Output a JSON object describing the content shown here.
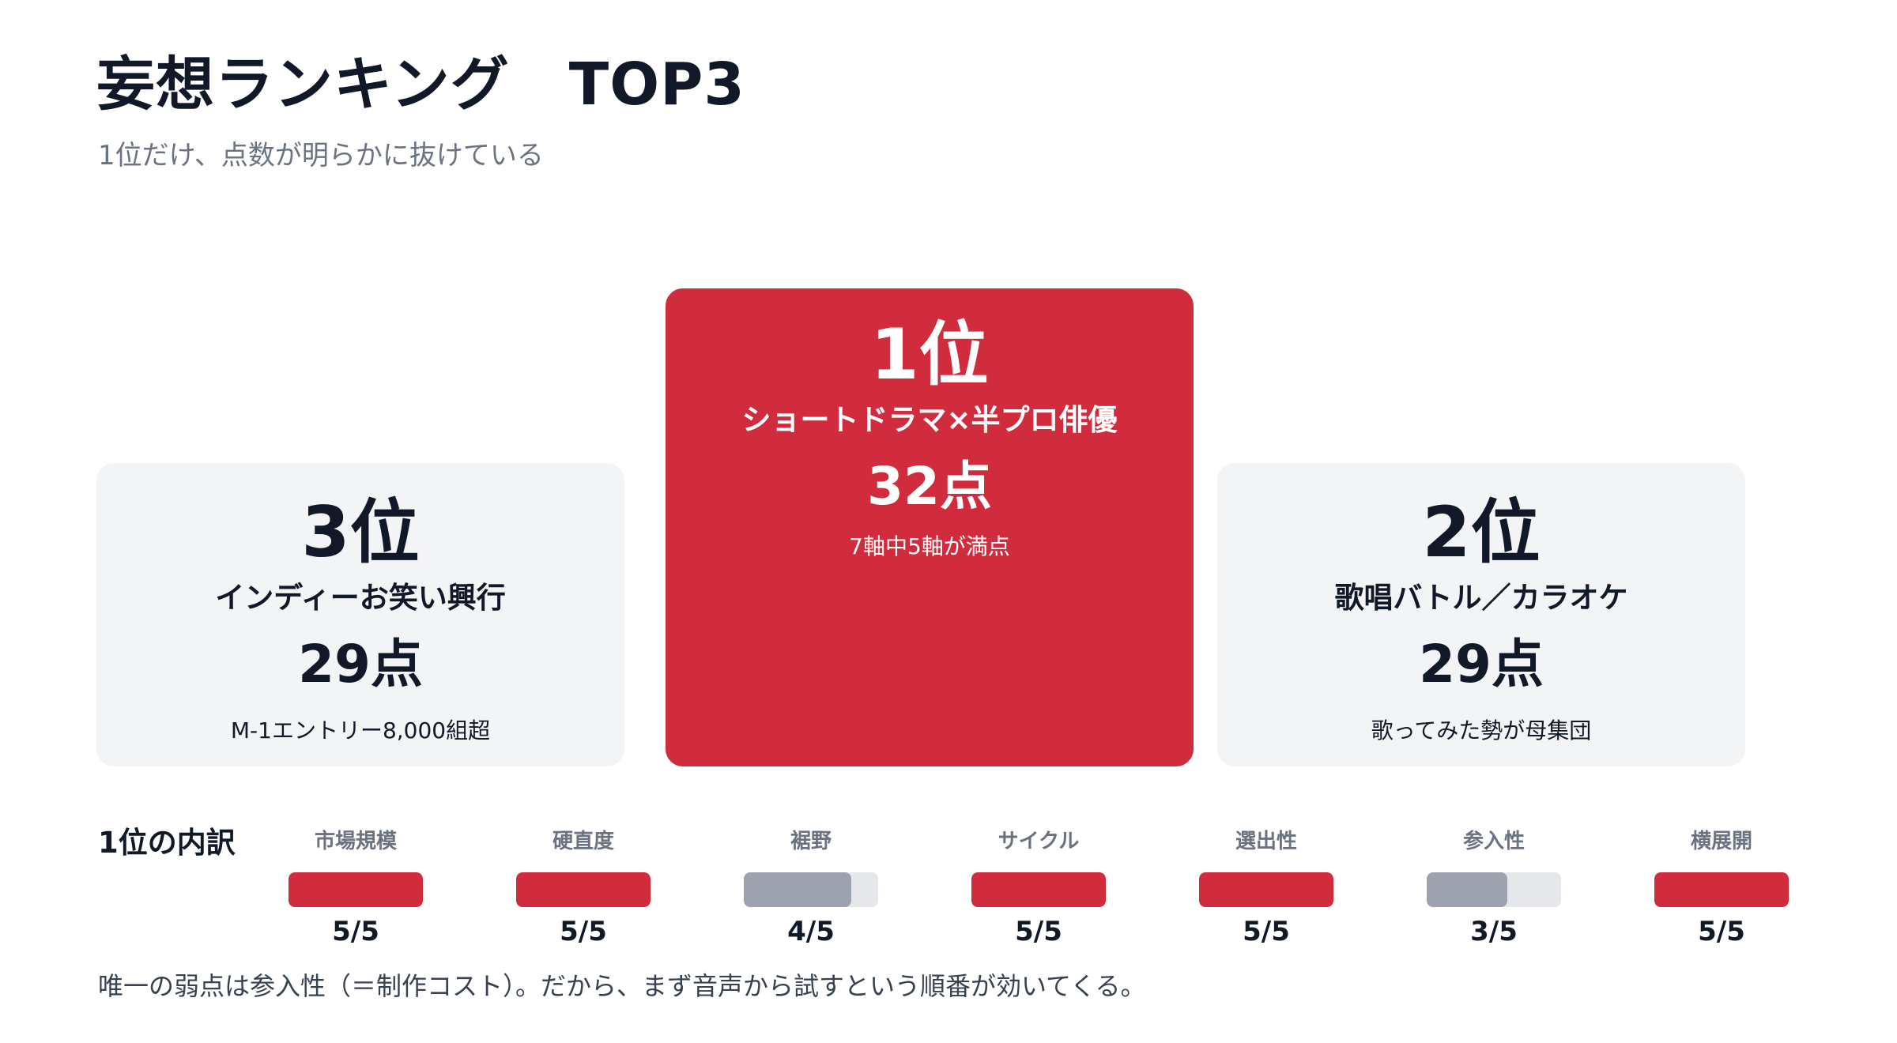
{
  "header": {
    "title": "妄想ランキング　TOP3",
    "subtitle": "1位だけ、点数が明らかに抜けている"
  },
  "ranking": {
    "first": {
      "rank": "1位",
      "name": "ショートドラマ×半プロ俳優",
      "score": "32点",
      "note": "7軸中5軸が満点"
    },
    "second": {
      "rank": "2位",
      "name": "歌唱バトル／カラオケ",
      "score": "29点",
      "note": "歌ってみた勢が母集団"
    },
    "third": {
      "rank": "3位",
      "name": "インディーお笑い興行",
      "score": "29点",
      "note": "M-1エントリー8,000組超"
    }
  },
  "breakdown": {
    "label": "1位の内訳",
    "max": 5,
    "axes": [
      {
        "label": "市場規模",
        "value": 5,
        "display": "5/5",
        "color": "#d12c3e"
      },
      {
        "label": "硬直度",
        "value": 5,
        "display": "5/5",
        "color": "#d12c3e"
      },
      {
        "label": "裾野",
        "value": 4,
        "display": "4/5",
        "color": "#9ca3af"
      },
      {
        "label": "サイクル",
        "value": 5,
        "display": "5/5",
        "color": "#d12c3e"
      },
      {
        "label": "選出性",
        "value": 5,
        "display": "5/5",
        "color": "#d12c3e"
      },
      {
        "label": "参入性",
        "value": 3,
        "display": "3/5",
        "color": "#9ca3af"
      },
      {
        "label": "横展開",
        "value": 5,
        "display": "5/5",
        "color": "#d12c3e"
      }
    ]
  },
  "footer": {
    "text": "唯一の弱点は参入性（＝制作コスト）。だから、まず音声から試すという順番が効いてくる。"
  },
  "colors": {
    "accent": "#d12c3e",
    "muted_bar": "#9ca3af",
    "track": "#e5e7eb",
    "card_bg": "#f3f4f6"
  }
}
